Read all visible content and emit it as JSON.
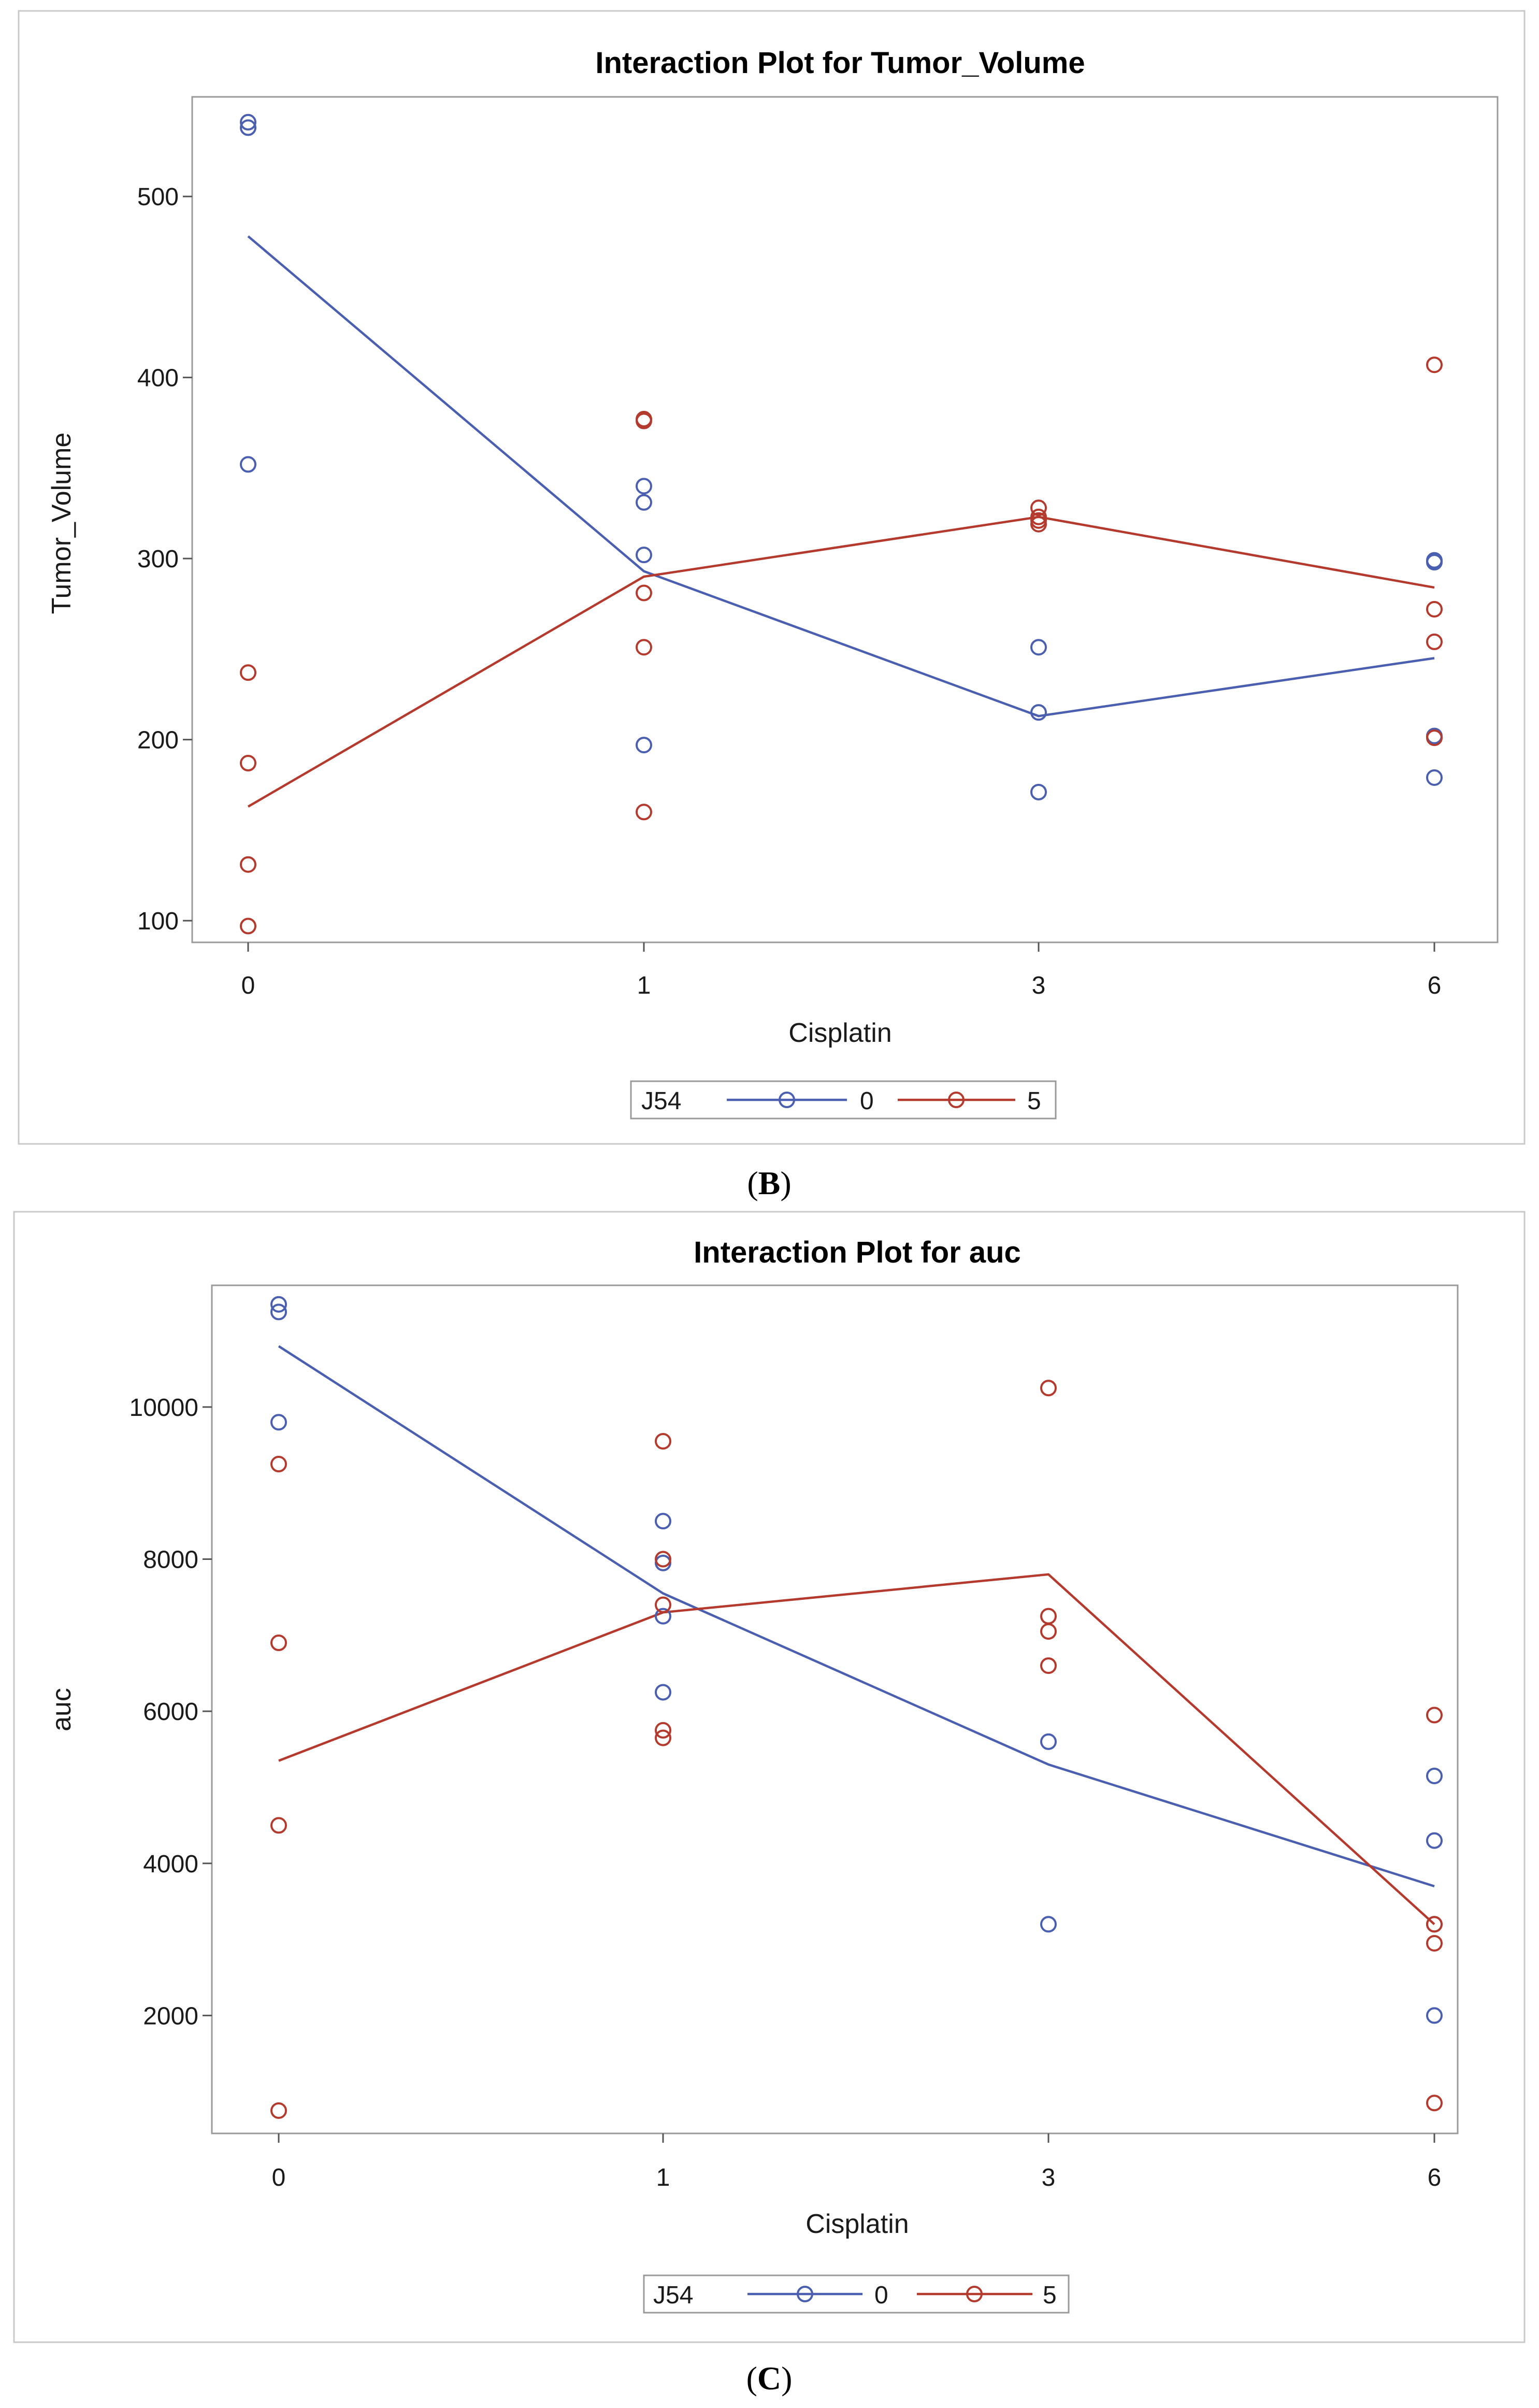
{
  "chart_data": [
    {
      "type": "line",
      "title": "Interaction Plot for Tumor_Volume",
      "xlabel": "Cisplatin",
      "ylabel": "Tumor_Volume",
      "categories": [
        "0",
        "1",
        "3",
        "6"
      ],
      "yticks": [
        100,
        200,
        300,
        400,
        500
      ],
      "ylim": [
        88,
        555
      ],
      "legend": {
        "title": "J54",
        "placement": "bottom-center"
      },
      "caption_letter": "B",
      "series": [
        {
          "name": "0",
          "color": "#4a5fb0",
          "means": [
            478,
            293,
            213,
            245
          ],
          "points": [
            [
              0,
              541
            ],
            [
              0,
              538
            ],
            [
              0,
              352
            ],
            [
              1,
              340
            ],
            [
              1,
              331
            ],
            [
              1,
              302
            ],
            [
              1,
              197
            ],
            [
              2,
              251
            ],
            [
              2,
              215
            ],
            [
              2,
              171
            ],
            [
              3,
              299
            ],
            [
              3,
              298
            ],
            [
              3,
              202
            ],
            [
              3,
              179
            ]
          ]
        },
        {
          "name": "5",
          "color": "#b53a2e",
          "means": [
            163,
            290,
            323,
            284
          ],
          "points": [
            [
              0,
              237
            ],
            [
              0,
              187
            ],
            [
              0,
              131
            ],
            [
              0,
              97
            ],
            [
              1,
              377
            ],
            [
              1,
              376
            ],
            [
              1,
              281
            ],
            [
              1,
              251
            ],
            [
              1,
              160
            ],
            [
              2,
              328
            ],
            [
              2,
              323
            ],
            [
              2,
              321
            ],
            [
              2,
              319
            ],
            [
              3,
              407
            ],
            [
              3,
              272
            ],
            [
              3,
              254
            ],
            [
              3,
              201
            ]
          ]
        }
      ]
    },
    {
      "type": "line",
      "title": "Interaction Plot for auc",
      "xlabel": "Cisplatin",
      "ylabel": "auc",
      "categories": [
        "0",
        "1",
        "3",
        "6"
      ],
      "yticks": [
        2000,
        4000,
        6000,
        8000,
        10000
      ],
      "ylim": [
        450,
        11600
      ],
      "legend": {
        "title": "J54",
        "placement": "bottom-center"
      },
      "caption_letter": "C",
      "series": [
        {
          "name": "0",
          "color": "#4a5fb0",
          "means": [
            10800,
            7550,
            5300,
            3700
          ],
          "points": [
            [
              0,
              11350
            ],
            [
              0,
              11250
            ],
            [
              0,
              9800
            ],
            [
              1,
              8500
            ],
            [
              1,
              7950
            ],
            [
              1,
              7250
            ],
            [
              1,
              6250
            ],
            [
              2,
              5600
            ],
            [
              2,
              3200
            ],
            [
              3,
              5150
            ],
            [
              3,
              4300
            ],
            [
              3,
              3200
            ],
            [
              3,
              2000
            ]
          ]
        },
        {
          "name": "5",
          "color": "#b53a2e",
          "means": [
            5350,
            7300,
            7800,
            3200
          ],
          "points": [
            [
              0,
              9250
            ],
            [
              0,
              6900
            ],
            [
              0,
              4500
            ],
            [
              0,
              750
            ],
            [
              1,
              9550
            ],
            [
              1,
              8000
            ],
            [
              1,
              7400
            ],
            [
              1,
              5750
            ],
            [
              1,
              5650
            ],
            [
              2,
              10250
            ],
            [
              2,
              7250
            ],
            [
              2,
              7050
            ],
            [
              2,
              6600
            ],
            [
              3,
              5950
            ],
            [
              3,
              3200
            ],
            [
              3,
              2950
            ],
            [
              3,
              850
            ]
          ]
        }
      ]
    }
  ]
}
